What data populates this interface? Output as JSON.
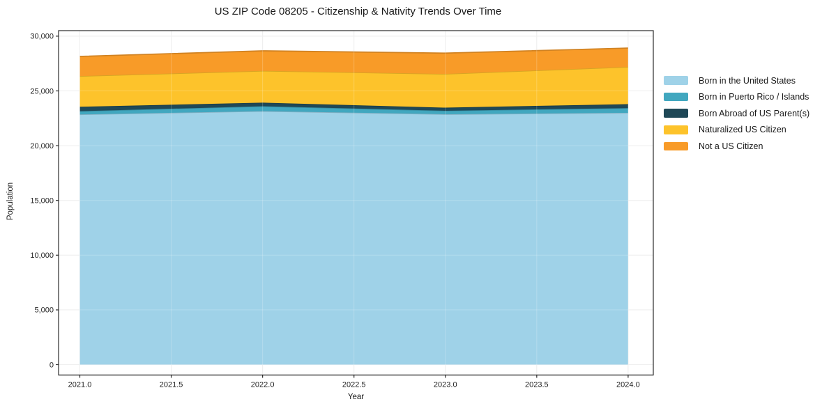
{
  "chart_data": {
    "type": "area",
    "stacked": true,
    "title": "US ZIP Code 08205 - Citizenship & Nativity Trends Over Time",
    "xlabel": "Year",
    "ylabel": "Population",
    "x": [
      2021,
      2022,
      2023,
      2024
    ],
    "series": [
      {
        "name": "Born in the United States",
        "color": "#9fd2e8",
        "values": [
          22850,
          23150,
          22870,
          23000
        ]
      },
      {
        "name": "Born in Puerto Rico / Islands",
        "color": "#41a7bf",
        "values": [
          300,
          450,
          320,
          430
        ]
      },
      {
        "name": "Born Abroad of US Parent(s)",
        "color": "#1f4857",
        "values": [
          400,
          330,
          280,
          360
        ]
      },
      {
        "name": "Naturalized US Citizen",
        "color": "#fdc32b",
        "values": [
          2800,
          2900,
          3080,
          3400
        ]
      },
      {
        "name": "Not a US Citizen",
        "color": "#f89b28",
        "values": [
          1800,
          1830,
          1900,
          1720
        ]
      }
    ],
    "stacked_totals": [
      28150,
      28660,
      28450,
      28910
    ],
    "xticks": [
      2021.0,
      2021.5,
      2022.0,
      2022.5,
      2023.0,
      2023.5,
      2024.0
    ],
    "xtick_labels": [
      "2021.0",
      "2021.5",
      "2022.0",
      "2022.5",
      "2023.0",
      "2023.5",
      "2024.0"
    ],
    "yticks": [
      0,
      5000,
      10000,
      15000,
      20000,
      25000,
      30000
    ],
    "ytick_labels": [
      "0",
      "5,000",
      "10,000",
      "15,000",
      "20,000",
      "25,000",
      "30,000"
    ],
    "ylim": [
      0,
      30000
    ],
    "grid": true,
    "legend_position": "right",
    "background_color": "#ffffff",
    "axis_color": "#2b2b2b",
    "grid_color": "#e9e9e9"
  }
}
